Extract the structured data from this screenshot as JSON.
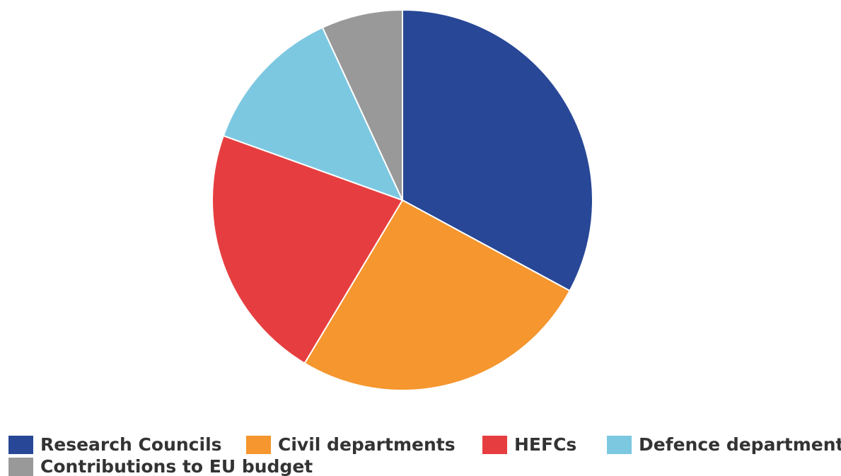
{
  "chart_data": {
    "type": "pie",
    "title": "",
    "categories": [
      "Research Councils",
      "Civil departments",
      "HEFCs",
      "Defence department",
      "Contributions to EU budget"
    ],
    "values": [
      32.9,
      25.7,
      21.9,
      12.6,
      6.9
    ],
    "colors": [
      "#284796",
      "#f5962e",
      "#e63e40",
      "#7dc8e1",
      "#999999"
    ],
    "legend_position": "bottom",
    "start_angle": "top",
    "direction": "clockwise"
  }
}
